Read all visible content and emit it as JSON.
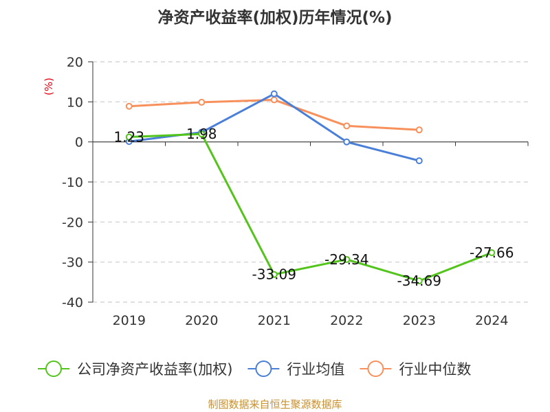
{
  "chart_data": {
    "type": "line",
    "title": "净资产收益率(加权)历年情况(%)",
    "ylabel": "(%)",
    "categories": [
      "2019",
      "2020",
      "2021",
      "2022",
      "2023",
      "2024"
    ],
    "ylim": [
      -40,
      20
    ],
    "yticks": [
      20,
      10,
      0,
      -10,
      -20,
      -30,
      -40
    ],
    "grid": true,
    "legend_position": "bottom",
    "series": [
      {
        "name": "公司净资产收益率(加权)",
        "color": "#52c41a",
        "values": [
          1.23,
          1.98,
          -33.09,
          -29.34,
          -34.69,
          -27.66
        ],
        "labels": [
          "1.23",
          "1.98",
          "-33.09",
          "-29.34",
          "-34.69",
          "-27.66"
        ]
      },
      {
        "name": "行业均值",
        "color": "#4a7fd8",
        "values": [
          0.1,
          2.4,
          12.0,
          0.0,
          -4.7,
          null
        ]
      },
      {
        "name": "行业中位数",
        "color": "#f7905a",
        "values": [
          8.9,
          9.9,
          10.5,
          4.0,
          3.0,
          null
        ]
      }
    ]
  },
  "source": "制图数据来自恒生聚源数据库"
}
